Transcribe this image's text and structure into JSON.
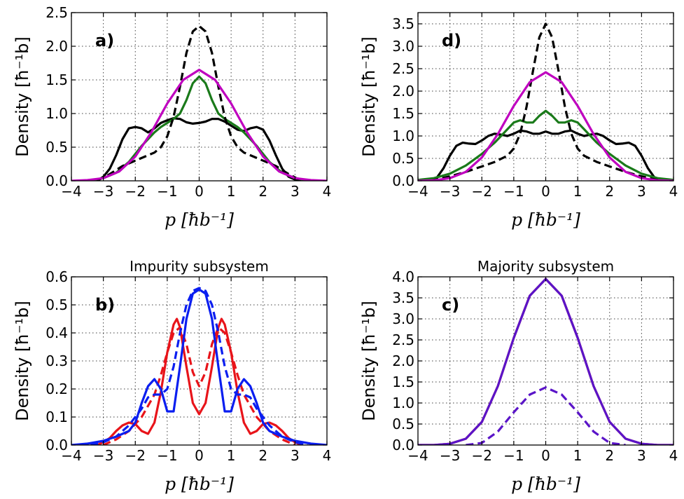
{
  "chart_data": [
    {
      "id": "a",
      "type": "line",
      "panel_label": "a)",
      "title": "",
      "ylabel": "Density [ħ⁻¹b]",
      "xlabel": "p [ħb⁻¹]",
      "xlim": [
        -4,
        4
      ],
      "ylim": [
        0,
        2.5
      ],
      "xticks": [
        "−4",
        "−3",
        "−2",
        "−1",
        "0",
        "1",
        "2",
        "3",
        "4"
      ],
      "yticks": [
        "0.0",
        "0.5",
        "1.0",
        "1.5",
        "2.0",
        "2.5"
      ],
      "grid": true,
      "series": [
        {
          "color": "#000000",
          "style": "solid",
          "x": [
            -3.2,
            -3.0,
            -2.8,
            -2.6,
            -2.4,
            -2.2,
            -2.0,
            -1.8,
            -1.6,
            -1.4,
            -1.2,
            -1.0,
            -0.8,
            -0.6,
            -0.4,
            -0.2,
            0.0,
            0.2,
            0.4,
            0.6,
            0.8,
            1.0,
            1.2,
            1.4,
            1.6,
            1.8,
            2.0,
            2.2,
            2.4,
            2.6,
            2.8,
            3.0,
            3.2
          ],
          "y": [
            0.0,
            0.06,
            0.18,
            0.38,
            0.62,
            0.78,
            0.8,
            0.78,
            0.72,
            0.78,
            0.86,
            0.9,
            0.93,
            0.92,
            0.87,
            0.85,
            0.86,
            0.88,
            0.92,
            0.92,
            0.88,
            0.82,
            0.76,
            0.74,
            0.78,
            0.8,
            0.76,
            0.6,
            0.38,
            0.18,
            0.06,
            0.02,
            0.0
          ]
        },
        {
          "color": "#1a7a1a",
          "style": "solid",
          "x": [
            -3.5,
            -3.0,
            -2.6,
            -2.2,
            -1.8,
            -1.4,
            -1.2,
            -1.0,
            -0.8,
            -0.6,
            -0.4,
            -0.2,
            0.0,
            0.2,
            0.4,
            0.6,
            0.8,
            1.0,
            1.2,
            1.4,
            1.8,
            2.2,
            2.6,
            3.0,
            3.5
          ],
          "y": [
            0.0,
            0.04,
            0.12,
            0.28,
            0.52,
            0.72,
            0.8,
            0.86,
            0.92,
            1.0,
            1.2,
            1.45,
            1.55,
            1.45,
            1.2,
            1.0,
            0.92,
            0.86,
            0.8,
            0.72,
            0.52,
            0.28,
            0.12,
            0.04,
            0.0
          ]
        },
        {
          "color": "#000000",
          "style": "dashed",
          "x": [
            -3.2,
            -2.8,
            -2.4,
            -2.0,
            -1.6,
            -1.4,
            -1.2,
            -1.0,
            -0.8,
            -0.6,
            -0.4,
            -0.2,
            0.0,
            0.2,
            0.4,
            0.6,
            0.8,
            1.0,
            1.2,
            1.4,
            1.6,
            2.0,
            2.4,
            2.8,
            3.2
          ],
          "y": [
            0.0,
            0.1,
            0.22,
            0.3,
            0.38,
            0.42,
            0.5,
            0.66,
            0.95,
            1.4,
            1.9,
            2.22,
            2.3,
            2.22,
            1.9,
            1.4,
            0.95,
            0.66,
            0.5,
            0.42,
            0.38,
            0.3,
            0.22,
            0.1,
            0.0
          ]
        },
        {
          "color": "#bf00bf",
          "style": "solid",
          "x": [
            -4.0,
            -3.5,
            -3.0,
            -2.5,
            -2.0,
            -1.5,
            -1.0,
            -0.5,
            0.0,
            0.5,
            1.0,
            1.5,
            2.0,
            2.5,
            3.0,
            3.5,
            4.0
          ],
          "y": [
            0.0,
            0.01,
            0.04,
            0.14,
            0.36,
            0.72,
            1.15,
            1.5,
            1.65,
            1.5,
            1.15,
            0.72,
            0.36,
            0.14,
            0.04,
            0.01,
            0.0
          ]
        }
      ]
    },
    {
      "id": "d",
      "type": "line",
      "panel_label": "d)",
      "title": "",
      "ylabel": "Density [ħ⁻¹b]",
      "xlabel": "p [ħb⁻¹]",
      "xlim": [
        -4,
        4
      ],
      "ylim": [
        0,
        3.75
      ],
      "xticks": [
        "−4",
        "−3",
        "−2",
        "−1",
        "0",
        "1",
        "2",
        "3",
        "4"
      ],
      "yticks": [
        "0.0",
        "0.5",
        "1.0",
        "1.5",
        "2.0",
        "2.5",
        "3.0",
        "3.5"
      ],
      "grid": true,
      "series": [
        {
          "color": "#000000",
          "style": "solid",
          "x": [
            -3.6,
            -3.4,
            -3.2,
            -3.0,
            -2.8,
            -2.6,
            -2.4,
            -2.2,
            -2.0,
            -1.8,
            -1.6,
            -1.4,
            -1.2,
            -1.0,
            -0.8,
            -0.6,
            -0.4,
            -0.2,
            0.0,
            0.2,
            0.4,
            0.6,
            0.8,
            1.0,
            1.2,
            1.4,
            1.6,
            1.8,
            2.0,
            2.2,
            2.4,
            2.6,
            2.8,
            3.0,
            3.2,
            3.4,
            3.6
          ],
          "y": [
            0.0,
            0.08,
            0.28,
            0.56,
            0.78,
            0.85,
            0.83,
            0.82,
            0.9,
            1.0,
            1.05,
            1.03,
            1.0,
            1.05,
            1.12,
            1.1,
            1.05,
            1.05,
            1.1,
            1.05,
            1.05,
            1.1,
            1.12,
            1.05,
            1.0,
            1.03,
            1.05,
            1.0,
            0.9,
            0.82,
            0.83,
            0.85,
            0.78,
            0.56,
            0.28,
            0.08,
            0.0
          ]
        },
        {
          "color": "#1a7a1a",
          "style": "solid",
          "x": [
            -4.0,
            -3.5,
            -3.0,
            -2.5,
            -2.0,
            -1.6,
            -1.2,
            -1.0,
            -0.8,
            -0.6,
            -0.4,
            -0.2,
            0.0,
            0.2,
            0.4,
            0.6,
            0.8,
            1.0,
            1.2,
            1.6,
            2.0,
            2.5,
            3.0,
            3.5,
            4.0
          ],
          "y": [
            0.02,
            0.06,
            0.16,
            0.34,
            0.6,
            0.85,
            1.15,
            1.3,
            1.35,
            1.3,
            1.3,
            1.45,
            1.56,
            1.45,
            1.3,
            1.3,
            1.35,
            1.3,
            1.15,
            0.85,
            0.6,
            0.34,
            0.16,
            0.06,
            0.02
          ]
        },
        {
          "color": "#000000",
          "style": "dashed",
          "x": [
            -3.6,
            -3.0,
            -2.5,
            -2.0,
            -1.6,
            -1.2,
            -1.0,
            -0.8,
            -0.6,
            -0.4,
            -0.2,
            0.0,
            0.2,
            0.4,
            0.6,
            0.8,
            1.0,
            1.2,
            1.6,
            2.0,
            2.5,
            3.0,
            3.6
          ],
          "y": [
            0.0,
            0.1,
            0.2,
            0.32,
            0.42,
            0.56,
            0.72,
            1.05,
            1.65,
            2.45,
            3.2,
            3.5,
            3.2,
            2.45,
            1.65,
            1.05,
            0.72,
            0.56,
            0.42,
            0.32,
            0.2,
            0.1,
            0.0
          ]
        },
        {
          "color": "#bf00bf",
          "style": "solid",
          "x": [
            -4.0,
            -3.5,
            -3.0,
            -2.5,
            -2.0,
            -1.5,
            -1.0,
            -0.5,
            0.0,
            0.5,
            1.0,
            1.5,
            2.0,
            2.5,
            3.0,
            3.5,
            4.0
          ],
          "y": [
            0.0,
            0.01,
            0.06,
            0.2,
            0.52,
            1.04,
            1.67,
            2.2,
            2.42,
            2.2,
            1.67,
            1.04,
            0.52,
            0.2,
            0.06,
            0.01,
            0.0
          ]
        }
      ]
    },
    {
      "id": "b",
      "type": "line",
      "panel_label": "b)",
      "title": "Impurity subsystem",
      "ylabel": "Density [ħ⁻¹b]",
      "xlabel": "p [ħb⁻¹]",
      "xlim": [
        -4,
        4
      ],
      "ylim": [
        0,
        0.6
      ],
      "xticks": [
        "−4",
        "−3",
        "−2",
        "−1",
        "0",
        "1",
        "2",
        "3",
        "4"
      ],
      "yticks": [
        "0.0",
        "0.1",
        "0.2",
        "0.3",
        "0.4",
        "0.5",
        "0.6"
      ],
      "grid": true,
      "series": [
        {
          "color": "#e8141a",
          "style": "solid",
          "x": [
            -3.2,
            -3.0,
            -2.8,
            -2.6,
            -2.4,
            -2.2,
            -2.0,
            -1.8,
            -1.6,
            -1.4,
            -1.2,
            -1.0,
            -0.8,
            -0.7,
            -0.6,
            -0.4,
            -0.2,
            0.0,
            0.2,
            0.4,
            0.6,
            0.7,
            0.8,
            1.0,
            1.2,
            1.4,
            1.6,
            1.8,
            2.0,
            2.2,
            2.4,
            2.6,
            2.8,
            3.0,
            3.2
          ],
          "y": [
            0.0,
            0.01,
            0.025,
            0.05,
            0.07,
            0.08,
            0.075,
            0.05,
            0.04,
            0.08,
            0.19,
            0.33,
            0.43,
            0.45,
            0.42,
            0.28,
            0.15,
            0.11,
            0.15,
            0.28,
            0.42,
            0.45,
            0.43,
            0.33,
            0.19,
            0.08,
            0.04,
            0.05,
            0.075,
            0.08,
            0.07,
            0.05,
            0.025,
            0.01,
            0.0
          ]
        },
        {
          "color": "#e8141a",
          "style": "dashed",
          "x": [
            -3.0,
            -2.6,
            -2.2,
            -1.8,
            -1.4,
            -1.2,
            -1.0,
            -0.8,
            -0.6,
            -0.4,
            -0.2,
            0.0,
            0.2,
            0.4,
            0.6,
            0.8,
            1.0,
            1.2,
            1.4,
            1.8,
            2.2,
            2.6,
            3.0
          ],
          "y": [
            0.0,
            0.02,
            0.05,
            0.1,
            0.18,
            0.25,
            0.33,
            0.4,
            0.42,
            0.36,
            0.26,
            0.21,
            0.26,
            0.36,
            0.42,
            0.4,
            0.33,
            0.25,
            0.18,
            0.1,
            0.05,
            0.02,
            0.0
          ]
        },
        {
          "color": "#0a1ef0",
          "style": "solid",
          "x": [
            -4.0,
            -3.5,
            -3.0,
            -2.6,
            -2.2,
            -2.0,
            -1.8,
            -1.6,
            -1.4,
            -1.2,
            -1.0,
            -0.8,
            -0.6,
            -0.4,
            -0.2,
            0.0,
            0.2,
            0.4,
            0.6,
            0.8,
            1.0,
            1.2,
            1.4,
            1.6,
            1.8,
            2.0,
            2.2,
            2.6,
            3.0,
            3.5,
            4.0
          ],
          "y": [
            0.0,
            0.005,
            0.015,
            0.03,
            0.05,
            0.08,
            0.15,
            0.21,
            0.235,
            0.2,
            0.12,
            0.12,
            0.28,
            0.45,
            0.54,
            0.555,
            0.54,
            0.45,
            0.28,
            0.12,
            0.12,
            0.2,
            0.235,
            0.21,
            0.15,
            0.08,
            0.05,
            0.03,
            0.015,
            0.005,
            0.0
          ]
        },
        {
          "color": "#0a1ef0",
          "style": "dashed",
          "x": [
            -3.4,
            -3.0,
            -2.6,
            -2.2,
            -1.8,
            -1.6,
            -1.4,
            -1.2,
            -1.0,
            -0.8,
            -0.6,
            -0.4,
            -0.2,
            0.0,
            0.2,
            0.4,
            0.6,
            0.8,
            1.0,
            1.2,
            1.4,
            1.6,
            1.8,
            2.2,
            2.6,
            3.0,
            3.4
          ],
          "y": [
            0.0,
            0.01,
            0.03,
            0.07,
            0.13,
            0.17,
            0.18,
            0.18,
            0.2,
            0.28,
            0.4,
            0.5,
            0.55,
            0.56,
            0.55,
            0.5,
            0.4,
            0.28,
            0.2,
            0.18,
            0.18,
            0.17,
            0.13,
            0.07,
            0.03,
            0.01,
            0.0
          ]
        }
      ]
    },
    {
      "id": "c",
      "type": "line",
      "panel_label": "c)",
      "title": "Majority subsystem",
      "ylabel": "Density [ħ⁻¹b]",
      "xlabel": "p [ħb⁻¹]",
      "xlim": [
        -4,
        4
      ],
      "ylim": [
        0,
        4.0
      ],
      "xticks": [
        "−4",
        "−3",
        "−2",
        "−1",
        "0",
        "1",
        "2",
        "3",
        "4"
      ],
      "yticks": [
        "0.0",
        "0.5",
        "1.0",
        "1.5",
        "2.0",
        "2.5",
        "3.0",
        "3.5",
        "4.0"
      ],
      "grid": true,
      "series": [
        {
          "color": "#e8141a",
          "style": "solid",
          "x": [
            -4.0,
            -3.5,
            -3.0,
            -2.5,
            -2.0,
            -1.5,
            -1.0,
            -0.5,
            0.0,
            0.5,
            1.0,
            1.5,
            2.0,
            2.5,
            3.0,
            3.5,
            4.0
          ],
          "y": [
            0.0,
            0.0,
            0.03,
            0.15,
            0.55,
            1.4,
            2.55,
            3.55,
            3.95,
            3.55,
            2.55,
            1.4,
            0.55,
            0.15,
            0.03,
            0.0,
            0.0
          ]
        },
        {
          "color": "#5a14c8",
          "style": "solid",
          "x": [
            -4.0,
            -3.5,
            -3.0,
            -2.5,
            -2.0,
            -1.5,
            -1.0,
            -0.5,
            0.0,
            0.5,
            1.0,
            1.5,
            2.0,
            2.5,
            3.0,
            3.5,
            4.0
          ],
          "y": [
            0.0,
            0.0,
            0.03,
            0.15,
            0.55,
            1.4,
            2.55,
            3.55,
            3.95,
            3.55,
            2.55,
            1.4,
            0.55,
            0.15,
            0.03,
            0.0,
            0.0
          ]
        },
        {
          "color": "#5a14c8",
          "style": "dashed",
          "x": [
            -2.5,
            -2.0,
            -1.5,
            -1.0,
            -0.5,
            0.0,
            0.5,
            1.0,
            1.5,
            2.0,
            2.5
          ],
          "y": [
            0.0,
            0.05,
            0.32,
            0.78,
            1.2,
            1.37,
            1.2,
            0.78,
            0.32,
            0.05,
            0.0
          ]
        }
      ]
    }
  ]
}
